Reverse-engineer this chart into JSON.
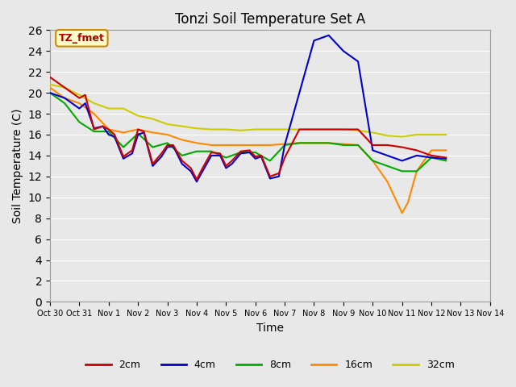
{
  "title": "Tonzi Soil Temperature Set A",
  "xlabel": "Time",
  "ylabel": "Soil Temperature (C)",
  "ylim": [
    0,
    26
  ],
  "yticks": [
    0,
    2,
    4,
    6,
    8,
    10,
    12,
    14,
    16,
    18,
    20,
    22,
    24,
    26
  ],
  "x_labels": [
    "Oct 30",
    "Oct 31",
    "Nov 1",
    "Nov 2",
    "Nov 3",
    "Nov 4",
    "Nov 5",
    "Nov 6",
    "Nov 7",
    "Nov 8",
    "Nov 9",
    "Nov 10",
    "Nov 11",
    "Nov 12",
    "Nov 13",
    "Nov 14"
  ],
  "background_color": "#e8e8e8",
  "plot_bg_color": "#e8e8e8",
  "annotation_label": "TZ_fmet",
  "annotation_bg": "#ffffcc",
  "annotation_border": "#cc8800",
  "series": {
    "2cm": {
      "color": "#cc0000",
      "lw": 1.5
    },
    "4cm": {
      "color": "#0000cc",
      "lw": 1.5
    },
    "8cm": {
      "color": "#00aa00",
      "lw": 1.5
    },
    "16cm": {
      "color": "#ff8800",
      "lw": 1.5
    },
    "32cm": {
      "color": "#cccc00",
      "lw": 1.5
    }
  },
  "x_2cm": [
    0,
    0.5,
    1,
    1.2,
    1.5,
    1.8,
    2,
    2.2,
    2.5,
    2.8,
    3,
    3.2,
    3.5,
    3.8,
    4,
    4.2,
    4.5,
    4.8,
    5,
    5.2,
    5.5,
    5.8,
    6,
    6.2,
    6.5,
    6.8,
    7,
    7.2,
    7.5,
    7.8,
    8,
    8.5,
    9,
    9.5,
    10,
    10.5,
    11,
    11.5,
    12,
    12.5,
    13,
    13.5
  ],
  "y_2cm": [
    21.5,
    20.5,
    19.5,
    19.8,
    16.5,
    16.8,
    16.5,
    16.0,
    13.9,
    14.5,
    16.5,
    16.3,
    13.2,
    14.2,
    15.0,
    15.0,
    13.5,
    12.8,
    11.7,
    12.8,
    14.3,
    14.2,
    13.0,
    13.5,
    14.4,
    14.5,
    13.9,
    14.0,
    12.0,
    12.3,
    13.8,
    16.5,
    16.5,
    16.5,
    16.5,
    16.5,
    15.0,
    15.0,
    14.8,
    14.5,
    14.0,
    13.8
  ],
  "x_4cm": [
    0,
    0.5,
    1,
    1.2,
    1.5,
    1.8,
    2,
    2.2,
    2.5,
    2.8,
    3,
    3.2,
    3.5,
    3.8,
    4,
    4.2,
    4.5,
    4.8,
    5,
    5.2,
    5.5,
    5.8,
    6,
    6.2,
    6.5,
    6.8,
    7,
    7.2,
    7.5,
    7.8,
    8,
    8.5,
    9,
    9.5,
    10,
    10.5,
    11,
    11.3,
    11.5,
    11.7,
    12,
    12.5,
    13,
    13.5
  ],
  "y_4cm": [
    20.0,
    19.5,
    18.5,
    19.0,
    16.6,
    16.8,
    16.0,
    15.8,
    13.7,
    14.2,
    16.0,
    16.2,
    13.0,
    13.9,
    14.8,
    14.9,
    13.2,
    12.5,
    11.5,
    12.5,
    14.0,
    14.0,
    12.8,
    13.2,
    14.2,
    14.3,
    13.7,
    13.9,
    11.8,
    12.0,
    15.0,
    20.0,
    25.0,
    25.5,
    24.0,
    23.0,
    14.5,
    14.2,
    14.0,
    13.8,
    13.5,
    14.0,
    13.8,
    13.7
  ],
  "x_8cm": [
    0,
    0.5,
    1,
    1.5,
    2,
    2.5,
    3,
    3.5,
    4,
    4.5,
    5,
    5.5,
    6,
    6.5,
    7,
    7.5,
    8,
    8.5,
    9,
    9.5,
    10,
    10.5,
    11,
    11.5,
    12,
    12.5,
    13,
    13.5
  ],
  "y_8cm": [
    20.0,
    19.0,
    17.2,
    16.3,
    16.3,
    14.8,
    16.1,
    14.8,
    15.2,
    14.0,
    14.4,
    14.4,
    13.8,
    14.3,
    14.3,
    13.5,
    15.0,
    15.2,
    15.2,
    15.2,
    15.0,
    15.0,
    13.5,
    13.0,
    12.5,
    12.5,
    13.8,
    13.5
  ],
  "x_16cm": [
    0,
    0.5,
    1,
    1.5,
    2,
    2.5,
    3,
    3.5,
    4,
    4.5,
    5,
    5.5,
    6,
    6.5,
    7,
    7.5,
    8,
    8.5,
    9,
    9.5,
    10,
    10.5,
    11,
    11.5,
    12,
    12.2,
    12.5,
    13,
    13.5
  ],
  "y_16cm": [
    20.5,
    19.5,
    19.0,
    18.0,
    16.5,
    16.2,
    16.5,
    16.2,
    16.0,
    15.5,
    15.2,
    15.0,
    15.0,
    15.0,
    15.0,
    15.0,
    15.1,
    15.2,
    15.2,
    15.2,
    15.1,
    15.0,
    13.5,
    11.5,
    8.5,
    9.5,
    12.5,
    14.5,
    14.5
  ],
  "x_32cm": [
    0,
    0.5,
    1,
    1.5,
    2,
    2.5,
    3,
    3.5,
    4,
    4.5,
    5,
    5.5,
    6,
    6.5,
    7,
    7.5,
    8,
    8.5,
    9,
    9.5,
    10,
    10.5,
    11,
    11.5,
    12,
    12.5,
    13,
    13.5
  ],
  "y_32cm": [
    20.8,
    20.5,
    19.8,
    19.0,
    18.5,
    18.5,
    17.8,
    17.5,
    17.0,
    16.8,
    16.6,
    16.5,
    16.5,
    16.4,
    16.5,
    16.5,
    16.5,
    16.5,
    16.5,
    16.5,
    16.5,
    16.4,
    16.2,
    15.9,
    15.8,
    16.0,
    16.0,
    16.0
  ]
}
